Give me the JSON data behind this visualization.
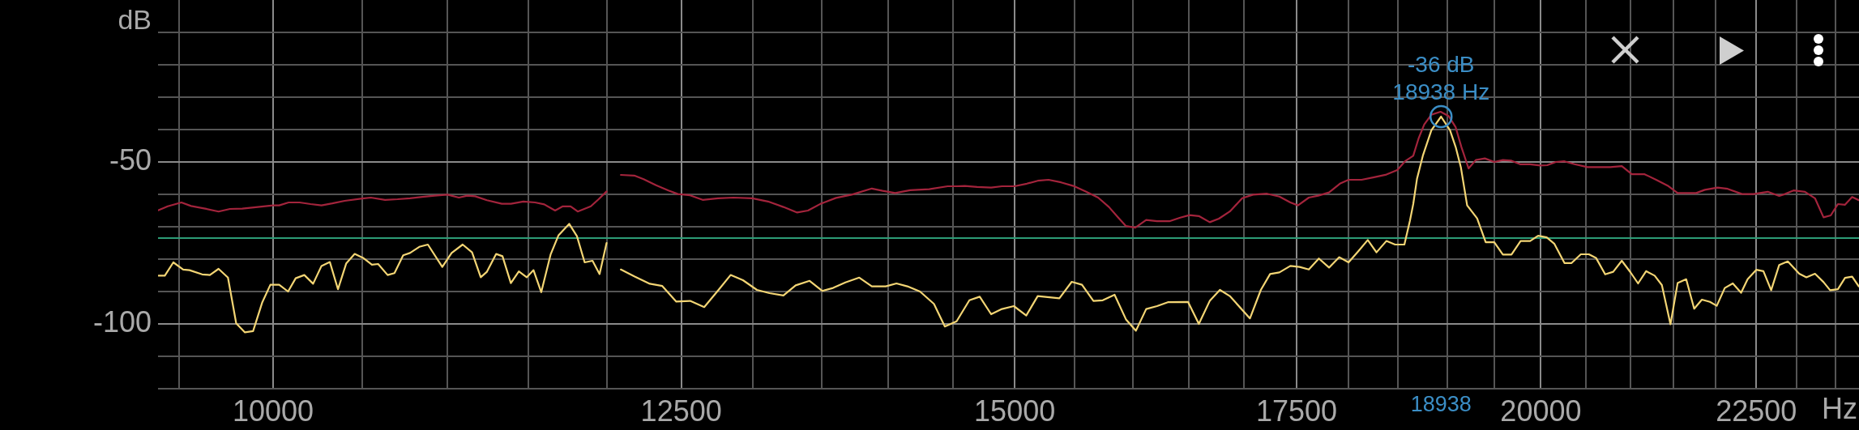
{
  "chart_data": {
    "type": "line",
    "xlabel": "Hz",
    "ylabel": "dB",
    "log": "x",
    "grid": true,
    "xlim": [
      9390,
      23800
    ],
    "ylim": [
      -120,
      0
    ],
    "xticks": [
      {
        "value": 9500,
        "label": null
      },
      10000,
      {
        "value": 10500,
        "label": null
      },
      {
        "value": 11000,
        "label": null
      },
      {
        "value": 11500,
        "label": null
      },
      {
        "value": 12000,
        "label": null
      },
      12500,
      {
        "value": 13000,
        "label": null
      },
      {
        "value": 13500,
        "label": null
      },
      {
        "value": 14000,
        "label": null
      },
      {
        "value": 14500,
        "label": null
      },
      15000,
      {
        "value": 15500,
        "label": null
      },
      {
        "value": 16000,
        "label": null
      },
      {
        "value": 16500,
        "label": null
      },
      {
        "value": 17000,
        "label": null
      },
      17500,
      {
        "value": 18000,
        "label": null
      },
      {
        "value": 18500,
        "label": null
      },
      {
        "value": 19000,
        "label": null
      },
      {
        "value": 19500,
        "label": null
      },
      20000,
      {
        "value": 20500,
        "label": null
      },
      {
        "value": 21000,
        "label": null
      },
      {
        "value": 21500,
        "label": null
      },
      {
        "value": 22000,
        "label": null
      },
      22500,
      {
        "value": 23000,
        "label": null
      },
      {
        "value": 23500,
        "label": null
      }
    ],
    "yticks": [
      {
        "value": -120,
        "label": null
      },
      {
        "value": -110,
        "label": null
      },
      -100,
      {
        "value": -90,
        "label": null
      },
      {
        "value": -80,
        "label": null
      },
      {
        "value": -70,
        "label": null
      },
      {
        "value": -60,
        "label": null
      },
      -50,
      {
        "value": -40,
        "label": null
      },
      {
        "value": -30,
        "label": null
      },
      {
        "value": -20,
        "label": null
      },
      {
        "value": -10,
        "label": null
      }
    ],
    "ref_lines": [
      {
        "axis": "y",
        "value": -73.5,
        "color": "#2c9c76"
      }
    ],
    "annotations": [
      {
        "text": "-36 dB",
        "x": 18938,
        "y": -36
      },
      {
        "text": "18938 Hz",
        "x": 18938,
        "y": -36
      },
      "18938"
    ],
    "series": [
      {
        "color": "#a3243c",
        "x": [
          9393,
          9440,
          9511,
          9561,
          9635,
          9706,
          9767,
          9833,
          9916,
          10000,
          10033,
          10085,
          10146,
          10207,
          10268,
          10329,
          10399,
          10500,
          10549,
          10631,
          10704,
          10777,
          10850,
          10923,
          11000,
          11069,
          11120,
          11168,
          11240,
          11332,
          11389,
          11466,
          11540,
          11598,
          11667,
          11716,
          11766,
          11812,
          11897,
          11948,
          12000,
          12047,
          12094,
          12183,
          12245,
          12329,
          12413,
          12477,
          12561,
          12647,
          12754,
          12863,
          12995,
          13107,
          13218,
          13318,
          13397,
          13490,
          13604,
          13721,
          13873,
          13955,
          14051,
          14166,
          14315,
          14460,
          14531,
          14596,
          14695,
          14808,
          14896,
          14997,
          15100,
          15190,
          15280,
          15385,
          15489,
          15594,
          15700,
          15793,
          15874,
          15941,
          16022,
          16118,
          16214,
          16324,
          16421,
          16505,
          16589,
          16688,
          16772,
          16872,
          16987,
          17088,
          17219,
          17336,
          17440,
          17513,
          17617,
          17708,
          17813,
          17919,
          18004,
          18133,
          18257,
          18380,
          18490,
          18568,
          18618,
          18652,
          18706,
          18765,
          18838,
          18933,
          19016,
          19090,
          19150,
          19225,
          19301,
          19397,
          19497,
          19589,
          19681,
          19774,
          19883,
          19992,
          20070,
          20165,
          20260,
          20372,
          20516,
          20645,
          20774,
          20905,
          21020,
          21168,
          21301,
          21435,
          21553,
          21773,
          21876,
          22030,
          22151,
          22325,
          22465,
          22642,
          22784,
          22856,
          22963,
          23107,
          23234,
          23343,
          23435,
          23527,
          23619,
          23711,
          23797
        ],
        "values": [
          -64.9,
          -63.7,
          -62.5,
          -63.6,
          -64.4,
          -65.3,
          -64.5,
          -64.4,
          -63.9,
          -63.4,
          -63.4,
          -62.5,
          -62.5,
          -63.0,
          -63.4,
          -62.8,
          -62.0,
          -61.3,
          -61.0,
          -61.7,
          -61.5,
          -61.2,
          -60.8,
          -60.4,
          -60.1,
          -61.0,
          -60.4,
          -60.6,
          -61.8,
          -62.9,
          -62.9,
          -62.2,
          -62.5,
          -63.1,
          -65.0,
          -63.7,
          -63.7,
          -65.3,
          -63.7,
          -61.5,
          -59.1,
          null,
          -54.0,
          -54.2,
          -55.3,
          -57.2,
          -58.8,
          -59.9,
          -60.3,
          -61.7,
          -61.2,
          -61.0,
          -61.2,
          -62.2,
          -63.9,
          -65.6,
          -65.0,
          -62.9,
          -61.1,
          -60.1,
          -58.2,
          -58.9,
          -59.6,
          -58.7,
          -58.4,
          -57.5,
          -57.5,
          -57.4,
          -57.7,
          -57.9,
          -57.5,
          -57.5,
          -56.7,
          -55.8,
          -55.5,
          -56.3,
          -57.4,
          -59.1,
          -61.0,
          -63.9,
          -67.2,
          -69.8,
          -70.3,
          -67.9,
          -68.3,
          -68.3,
          -67.2,
          -66.4,
          -66.7,
          -68.6,
          -67.5,
          -65.3,
          -61.2,
          -60.1,
          -59.8,
          -60.7,
          -62.5,
          -63.4,
          -61.0,
          -60.4,
          -59.4,
          -56.7,
          -55.5,
          -55.5,
          -54.7,
          -53.9,
          -52.5,
          -49.8,
          -48.8,
          -48.1,
          -42.8,
          -38.4,
          -35.4,
          -34.5,
          -35.8,
          -39.3,
          -45.4,
          -52.0,
          -49.4,
          -48.9,
          -50.0,
          -49.4,
          -49.6,
          -50.7,
          -50.7,
          -51.1,
          -51.0,
          -50.0,
          -49.8,
          -50.7,
          -51.6,
          -51.6,
          -51.6,
          -51.3,
          -53.8,
          -53.8,
          -55.5,
          -57.3,
          -59.6,
          -59.6,
          -58.6,
          -57.9,
          -58.3,
          -59.9,
          -59.9,
          -59.2,
          -60.5,
          -59.9,
          -58.8,
          -59.2,
          -61.2,
          -67.1,
          -66.5,
          -63.0,
          -63.2,
          -60.8,
          -61.8
        ]
      },
      {
        "color": "#f3d574",
        "x": [
          9393,
          9425,
          9469,
          9520,
          9553,
          9619,
          9660,
          9706,
          9756,
          9800,
          9847,
          9891,
          9941,
          9985,
          10033,
          10082,
          10124,
          10172,
          10221,
          10268,
          10315,
          10361,
          10408,
          10456,
          10504,
          10555,
          10591,
          10646,
          10686,
          10737,
          10777,
          10832,
          10883,
          10969,
          11025,
          11092,
          11149,
          11202,
          11240,
          11297,
          11336,
          11388,
          11438,
          11487,
          11530,
          11579,
          11638,
          11688,
          11757,
          11807,
          11857,
          11908,
          11954,
          12000,
          12047,
          12094,
          12183,
          12287,
          12371,
          12466,
          12561,
          12658,
          12754,
          12842,
          12929,
          13028,
          13118,
          13218,
          13307,
          13409,
          13501,
          13582,
          13674,
          13778,
          13873,
          13979,
          14061,
          14145,
          14243,
          14352,
          14438,
          14531,
          14633,
          14716,
          14808,
          14896,
          14993,
          15095,
          15190,
          15371,
          15475,
          15562,
          15660,
          15740,
          15842,
          15941,
          16028,
          16118,
          16214,
          16310,
          16491,
          16589,
          16688,
          16781,
          16872,
          17059,
          17161,
          17248,
          17336,
          17440,
          17528,
          17617,
          17714,
          17813,
          17913,
          18004,
          18102,
          18194,
          18281,
          18380,
          18468,
          18562,
          18618,
          18652,
          18691,
          18750,
          18838,
          18938,
          19031,
          19090,
          19144,
          19210,
          19315,
          19406,
          19497,
          19589,
          19681,
          19780,
          19883,
          19970,
          20064,
          20149,
          20260,
          20339,
          20442,
          20532,
          20612,
          20716,
          20807,
          20905,
          21003,
          21092,
          21185,
          21284,
          21368,
          21469,
          21553,
          21654,
          21749,
          21841,
          21937,
          22019,
          22116,
          22213,
          22314,
          22394,
          22500,
          22588,
          22684,
          22784,
          22891,
          23035,
          23125,
          23234,
          23343,
          23427,
          23527,
          23619,
          23711,
          23797
        ],
        "values": [
          -85.1,
          -85.1,
          -81.0,
          -83.2,
          -83.4,
          -84.7,
          -84.9,
          -83.0,
          -85.7,
          -99.8,
          -102.6,
          -102.2,
          -93.3,
          -87.9,
          -87.9,
          -90.0,
          -85.9,
          -84.9,
          -87.6,
          -82.1,
          -80.9,
          -89.3,
          -81.3,
          -78.4,
          -79.6,
          -81.7,
          -81.5,
          -84.9,
          -84.3,
          -78.8,
          -78.1,
          -76.2,
          -75.5,
          -82.4,
          -78.1,
          -75.5,
          -77.9,
          -85.6,
          -83.9,
          -78.4,
          -79.1,
          -87.4,
          -83.8,
          -85.6,
          -83.4,
          -90.2,
          -78.6,
          -72.7,
          -69.1,
          -72.9,
          -81.0,
          -80.5,
          -84.6,
          -75.0,
          null,
          -83.2,
          -85.3,
          -87.6,
          -88.3,
          -93.1,
          -92.9,
          -94.8,
          -89.7,
          -84.9,
          -86.5,
          -89.5,
          -90.5,
          -91.2,
          -88.1,
          -86.7,
          -89.8,
          -88.9,
          -87.2,
          -85.7,
          -88.4,
          -88.4,
          -87.5,
          -88.4,
          -90.0,
          -93.8,
          -100.8,
          -99.2,
          -92.7,
          -91.6,
          -97.0,
          -95.4,
          -94.5,
          -97.4,
          -91.4,
          -92.1,
          -87.0,
          -87.9,
          -92.9,
          -92.7,
          -91.0,
          -98.6,
          -102.1,
          -95.4,
          -94.5,
          -93.3,
          -93.2,
          -100.0,
          -92.9,
          -89.5,
          -91.4,
          -98.3,
          -89.5,
          -84.6,
          -84.1,
          -82.1,
          -82.4,
          -83.2,
          -79.8,
          -82.6,
          -79.4,
          -81.0,
          -77.5,
          -74.1,
          -77.9,
          -74.4,
          -75.5,
          -75.5,
          -68.2,
          -63.0,
          -55.1,
          -48.1,
          -40.2,
          -36,
          -40.2,
          -45.4,
          -51.6,
          -63.4,
          -67.4,
          -74.8,
          -74.8,
          -78.6,
          -78.6,
          -74.4,
          -74.4,
          -72.8,
          -73.3,
          -75.3,
          -81.2,
          -81.2,
          -78.5,
          -78.5,
          -79.6,
          -84.7,
          -83.9,
          -80.5,
          -84.0,
          -87.5,
          -83.7,
          -85.1,
          -88.0,
          -100.1,
          -87.4,
          -86.2,
          -95.3,
          -92.5,
          -93.2,
          -94.4,
          -88.9,
          -87.5,
          -90.4,
          -86.2,
          -83.3,
          -83.7,
          -89.6,
          -81.8,
          -80.7,
          -84.5,
          -85.6,
          -84.5,
          -87.1,
          -89.6,
          -89.3,
          -85.8,
          -85.4,
          -88.4
        ]
      },
      {
        "type": "scatter",
        "color": "#3b8ec6",
        "marker": "circle",
        "x": [
          18938
        ],
        "values": [
          -36
        ]
      }
    ]
  }
}
